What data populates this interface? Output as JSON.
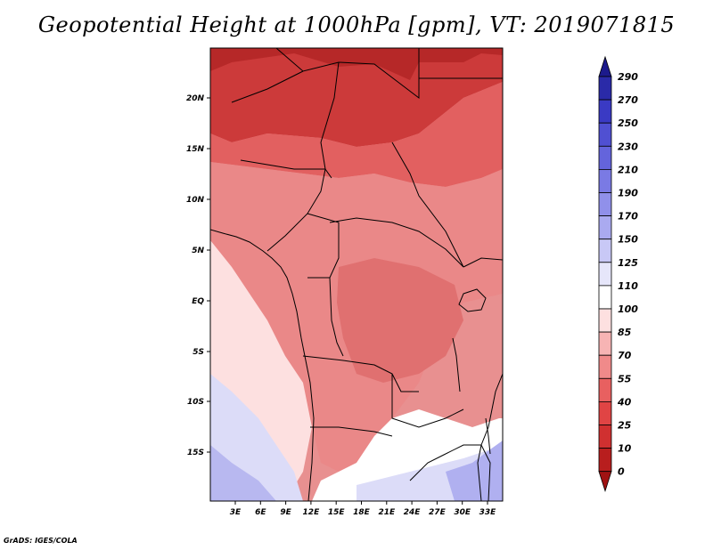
{
  "title": "Geopotential Height at 1000hPa [gpm], VT: 2019071815",
  "credit": "GrADS: IGES/COLA",
  "map": {
    "lat_labels": [
      "20N",
      "15N",
      "10N",
      "5N",
      "EQ",
      "5S",
      "10S",
      "15S"
    ],
    "lon_labels": [
      "3E",
      "6E",
      "9E",
      "12E",
      "15E",
      "18E",
      "21E",
      "24E",
      "27E",
      "30E",
      "33E"
    ]
  },
  "colorbar": {
    "levels": [
      "290",
      "270",
      "250",
      "230",
      "210",
      "190",
      "170",
      "150",
      "125",
      "110",
      "100",
      "85",
      "70",
      "55",
      "40",
      "25",
      "10",
      "0"
    ],
    "colors": [
      "#1c1a8c",
      "#2a2aa8",
      "#3a3ac4",
      "#5050d2",
      "#6464dc",
      "#7a7ae4",
      "#9090ea",
      "#aaaaf0",
      "#c8c8f6",
      "#e6e6fa",
      "#ffffff",
      "#fde0e0",
      "#f7b4b4",
      "#f08a8a",
      "#e86060",
      "#e04444",
      "#d03030",
      "#b81e1e",
      "#a01212"
    ]
  }
}
